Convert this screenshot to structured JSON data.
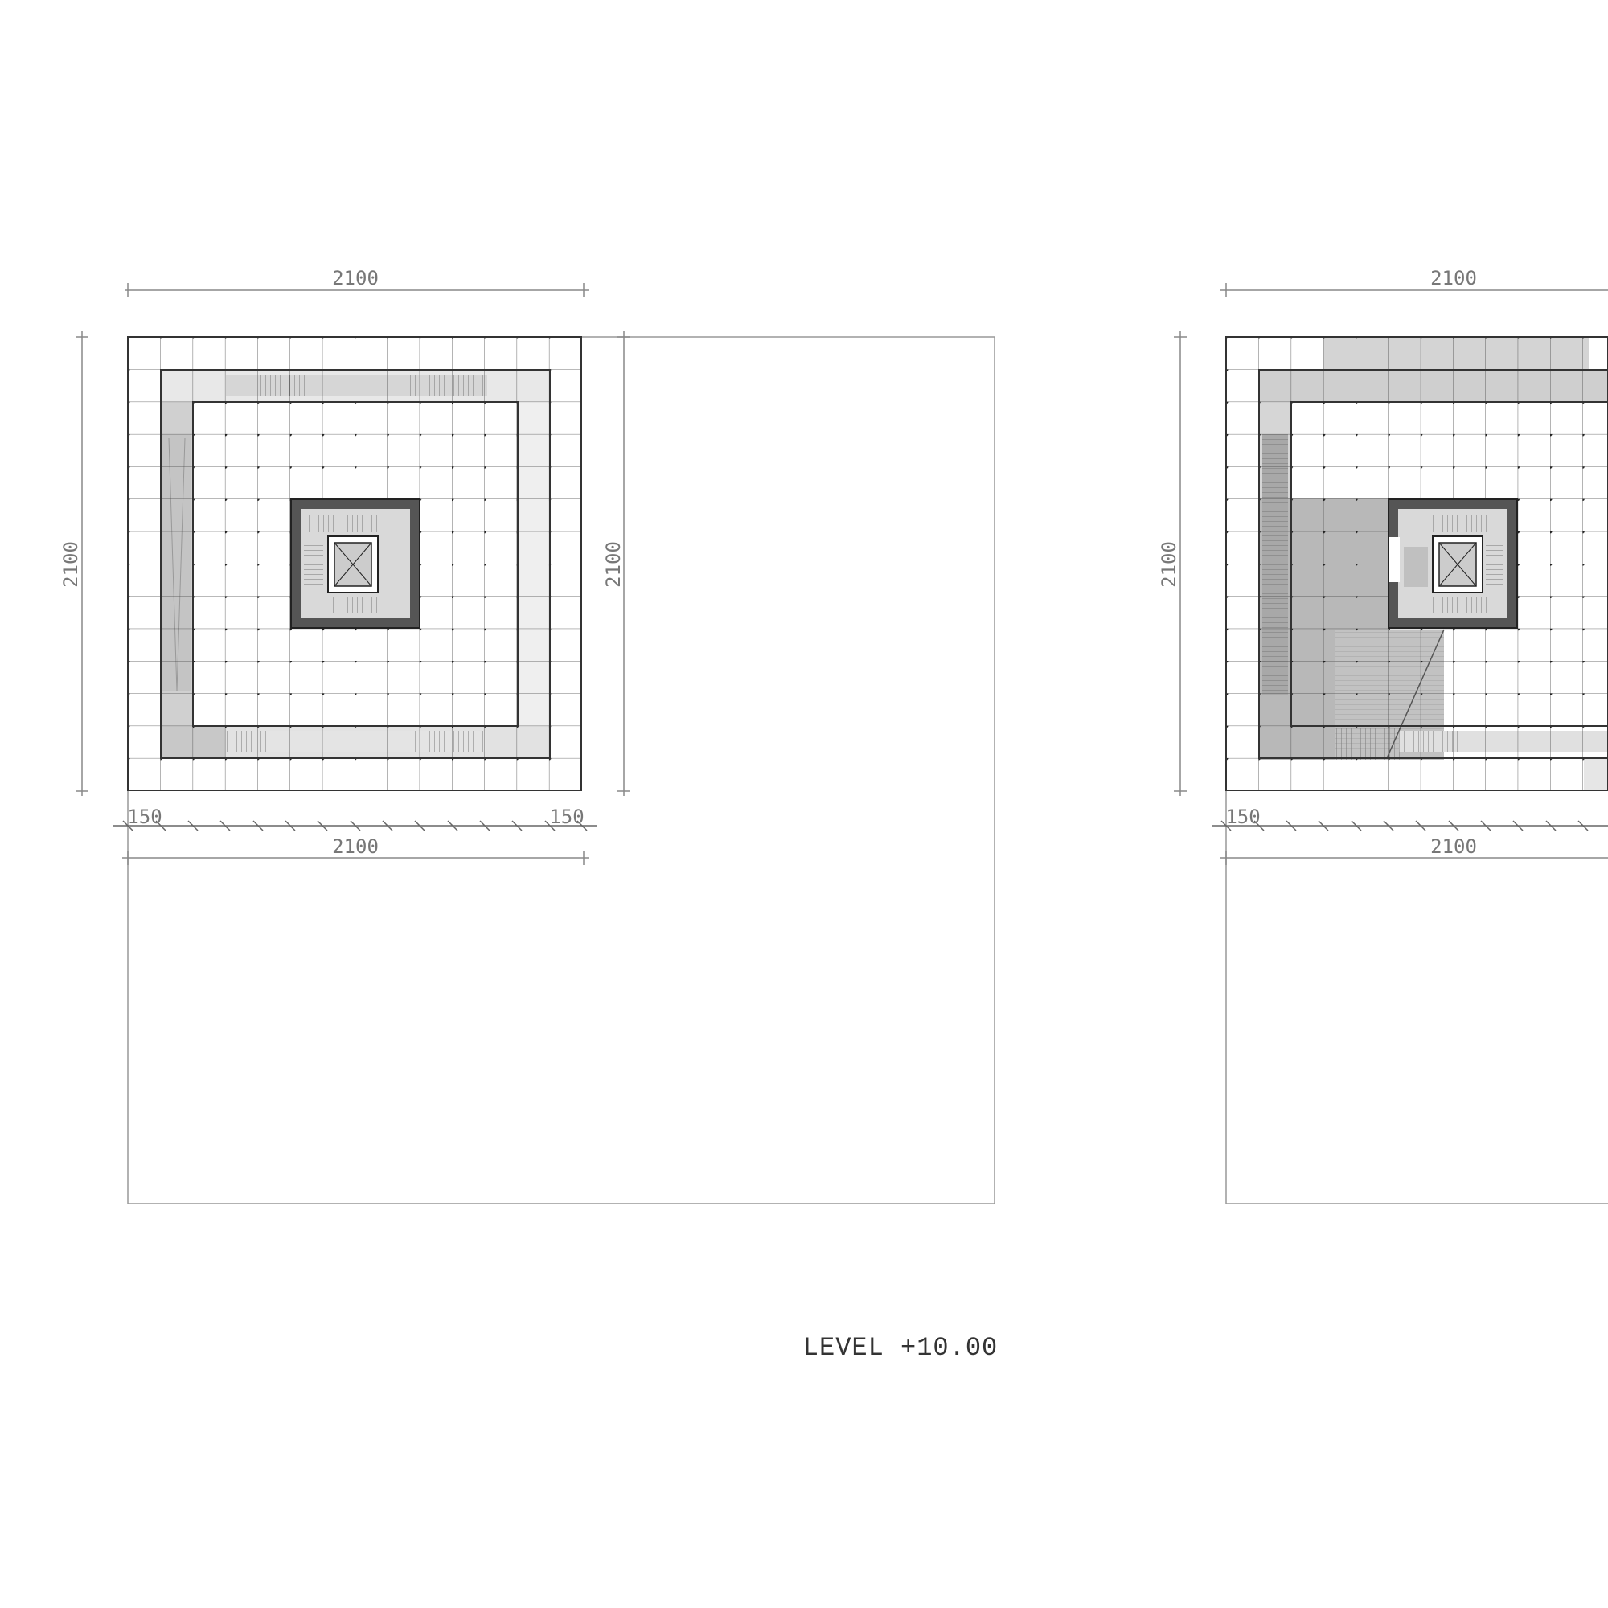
{
  "caption": "LEVEL +10.00",
  "plans": [
    {
      "id": "plan-left",
      "dims": {
        "top": "2100",
        "left": "2100",
        "right": "2100",
        "bottom": "2100",
        "edge_left": "150",
        "edge_right": "150"
      }
    },
    {
      "id": "plan-right",
      "dims": {
        "top": "2100",
        "left": "2100",
        "bottom": "2100",
        "edge_left": "150"
      }
    }
  ],
  "colors": {
    "line": "#333333",
    "dim_line": "#888888",
    "light_fill": "#e6e6e6",
    "mid_fill": "#bdbdbd",
    "core_wall": "#555555"
  }
}
